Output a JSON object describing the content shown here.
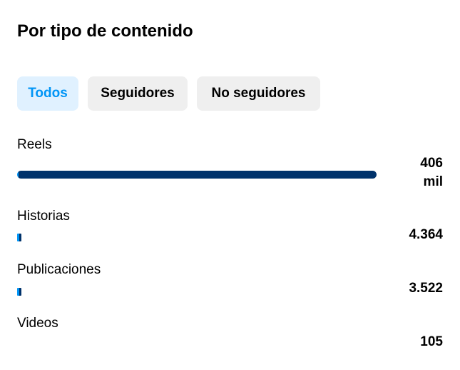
{
  "title": "Por tipo de contenido",
  "tabs": [
    {
      "label": "Todos",
      "active": true
    },
    {
      "label": "Seguidores",
      "active": false
    },
    {
      "label": "No seguidores",
      "active": false
    }
  ],
  "colors": {
    "accent": "#0095f6",
    "bar_dark": "#00326b",
    "bar_light": "#0095f6"
  },
  "items": [
    {
      "label": "Reels",
      "value_line1": "406",
      "value_line2": "mil",
      "fill_percent": 100
    },
    {
      "label": "Historias",
      "value": "4.364",
      "fill_percent": 1.1
    },
    {
      "label": "Publicaciones",
      "value": "3.522",
      "fill_percent": 0.9
    },
    {
      "label": "Videos",
      "value": "105",
      "fill_percent": 0
    }
  ]
}
